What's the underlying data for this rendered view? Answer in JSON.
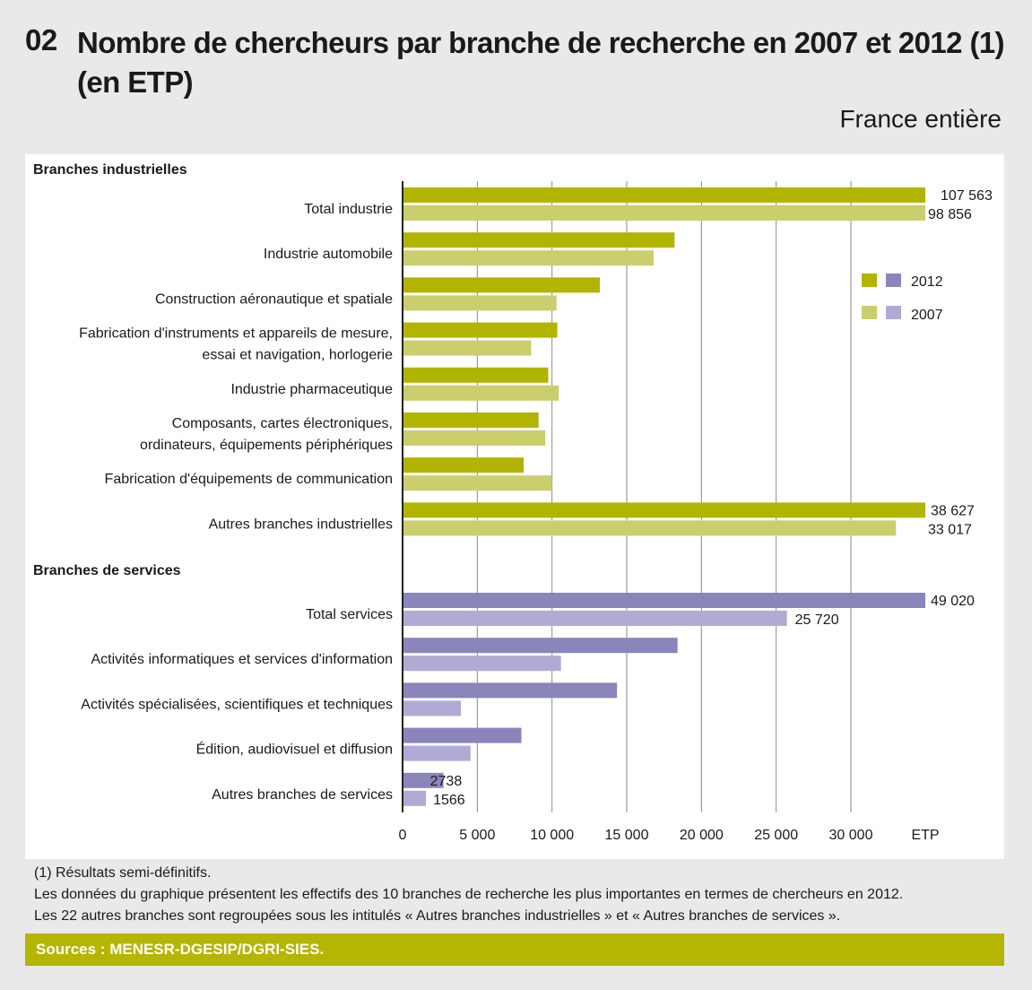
{
  "header": {
    "number": "02",
    "title": "Nombre de chercheurs par branche de recherche en 2007 et 2012 (1) (en ETP)",
    "scope": "France entière"
  },
  "colors": {
    "ind2012": "#b1b502",
    "ind2007": "#cbce6c",
    "serv2012": "#8a85bb",
    "serv2007": "#b0abd4",
    "grid": "#8a8a8a"
  },
  "chart_data": {
    "type": "bar",
    "orientation": "horizontal",
    "title": "Nombre de chercheurs par branche de recherche en 2007 et 2012 (1) (en ETP)",
    "xlabel": "ETP",
    "xlim": [
      0,
      35000
    ],
    "x_ticks": [
      0,
      5000,
      10000,
      15000,
      20000,
      25000,
      30000
    ],
    "x_tick_labels": [
      "0",
      "5 000",
      "10 000",
      "15 000",
      "20 000",
      "25 000",
      "30 000"
    ],
    "legend": [
      "2012",
      "2007"
    ],
    "legend_position": "right",
    "groups": [
      {
        "name": "Branches industrielles",
        "kind": "industry",
        "categories": [
          {
            "label": [
              "Total industrie"
            ],
            "v2012": 107563,
            "v2007": 98856,
            "lbl2012": "107 563",
            "lbl2007": "98 856",
            "broken": true
          },
          {
            "label": [
              "Industrie automobile"
            ],
            "v2012": 18200,
            "v2007": 16800
          },
          {
            "label": [
              "Construction aéronautique et spatiale"
            ],
            "v2012": 13200,
            "v2007": 10300
          },
          {
            "label": [
              "Fabrication d'instruments et appareils de mesure,",
              "essai et navigation, horlogerie"
            ],
            "v2012": 10350,
            "v2007": 8600
          },
          {
            "label": [
              "Industrie pharmaceutique"
            ],
            "v2012": 9750,
            "v2007": 10450
          },
          {
            "label": [
              "Composants, cartes électroniques,",
              "ordinateurs, équipements périphériques"
            ],
            "v2012": 9100,
            "v2007": 9550
          },
          {
            "label": [
              "Fabrication d'équipements de communication"
            ],
            "v2012": 8100,
            "v2007": 10000
          },
          {
            "label": [
              "Autres branches industrielles"
            ],
            "v2012": 38627,
            "v2007": 33017,
            "lbl2012": "38 627",
            "lbl2007": "33 017",
            "broken": true
          }
        ]
      },
      {
        "name": "Branches de services",
        "kind": "services",
        "categories": [
          {
            "label": [
              "Total services"
            ],
            "v2012": 49020,
            "v2007": 25720,
            "lbl2012": "49 020",
            "lbl2007": "25 720",
            "broken": true
          },
          {
            "label": [
              "Activités informatiques et services d'information"
            ],
            "v2012": 18400,
            "v2007": 10600
          },
          {
            "label": [
              "Activités spécialisées, scientifiques et techniques"
            ],
            "v2012": 14350,
            "v2007": 3900
          },
          {
            "label": [
              "Édition, audiovisuel et diffusion"
            ],
            "v2012": 7950,
            "v2007": 4550
          },
          {
            "label": [
              "Autres branches de services"
            ],
            "v2012": 2738,
            "v2007": 1566,
            "lbl2012": "2738",
            "lbl2007": "1566"
          }
        ]
      }
    ]
  },
  "notes": {
    "line1": "(1) Résultats semi-définitifs.",
    "line2": "Les données du graphique présentent les effectifs des 10 branches de recherche les plus importantes en termes de chercheurs en 2012.",
    "line3": "Les 22 autres branches sont regroupées sous les intitulés « Autres branches industrielles » et « Autres branches de services »."
  },
  "sources": "Sources : MENESR-DGESIP/DGRI-SIES."
}
